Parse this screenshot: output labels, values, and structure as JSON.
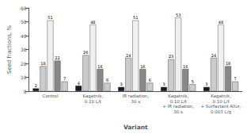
{
  "chart_data": {
    "type": "bar",
    "xlabel": "Variant",
    "ylabel": "Seed fractions, %",
    "categories": [
      "Control",
      "Kagatnik,\n0.10 L/t",
      "IR radiation,\n30 s",
      "Kagatnik,\n0.10 L/t\n+ IR radiation,\n30 s",
      "Kagatnik,\n0.10 L/t\n+ Surfactant Allur,\n0.003 L/g"
    ],
    "series": [
      {
        "color": "#1a1a1a",
        "values": [
          2,
          4,
          3,
          3,
          3
        ]
      },
      {
        "color": "#cccccc",
        "values": [
          18,
          26,
          24,
          23,
          24
        ]
      },
      {
        "color": "#f0f0f0",
        "values": [
          51,
          48,
          51,
          53,
          48
        ]
      },
      {
        "color": "#888888",
        "values": [
          22,
          16,
          16,
          16,
          18
        ]
      },
      {
        "color": "#cccccc",
        "values": [
          7,
          6,
          6,
          5,
          7
        ]
      }
    ],
    "ylim": [
      0,
      60
    ],
    "yticks": [
      0,
      10,
      20,
      30,
      40,
      50,
      60
    ],
    "data_labels": true,
    "grid": false
  }
}
